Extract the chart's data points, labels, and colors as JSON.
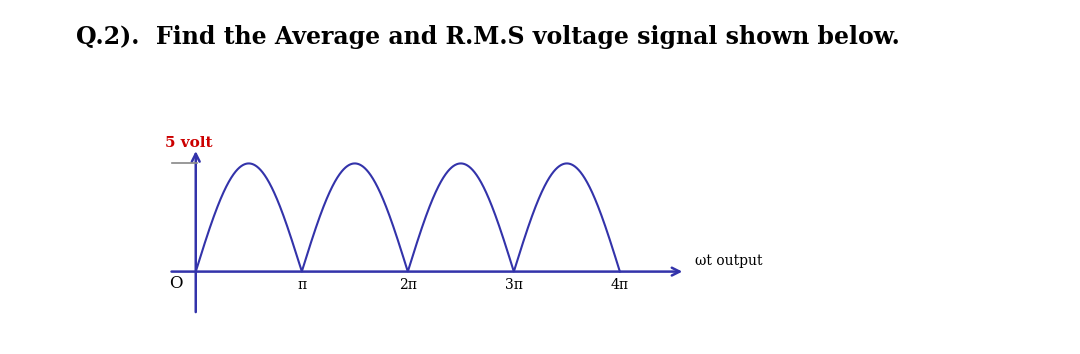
{
  "title": "Q.2).  Find the Average and R.M.S voltage signal shown below.",
  "title_fontsize": 17,
  "title_fontweight": "bold",
  "amplitude": 5,
  "ylabel_text": "5 volt",
  "ylabel_color": "#cc0000",
  "xlabel_text": "ωt output",
  "axis_color": "#3333aa",
  "wave_color": "#3333aa",
  "background_color": "#ffffff",
  "x_ticks": [
    3.14159,
    6.28318,
    9.42478,
    12.56637
  ],
  "x_tick_labels": [
    "π",
    "2π",
    "3π",
    "4π"
  ],
  "x_max": 15.0,
  "y_min": -2.5,
  "y_max": 6.5,
  "origin_label": "O"
}
